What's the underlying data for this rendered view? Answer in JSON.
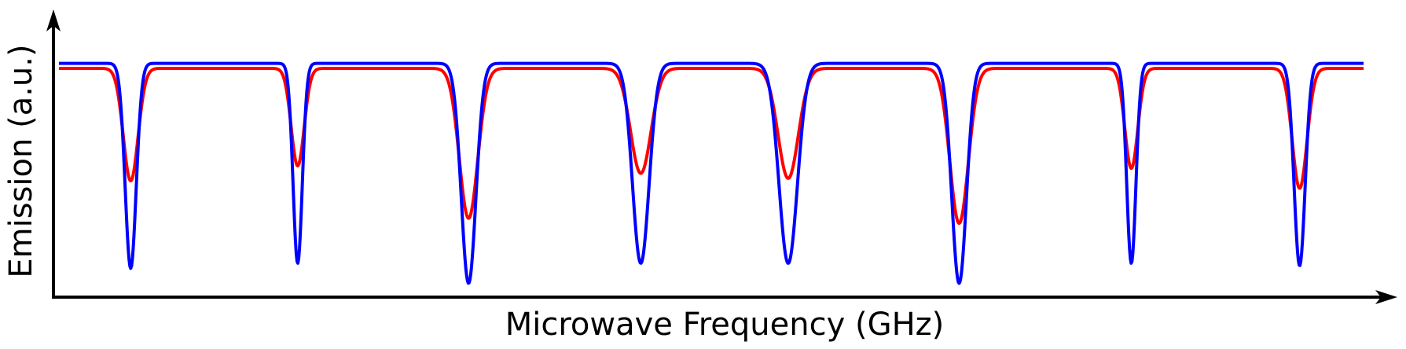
{
  "chart_data": {
    "type": "line",
    "title": "",
    "xlabel": "Microwave Frequency (GHz)",
    "ylabel": "Emission (a.u.)",
    "grid": false,
    "legend": "none",
    "xlim": [
      0,
      1
    ],
    "ylim": [
      0,
      1
    ],
    "series": [
      {
        "color": "#ff0000",
        "baseline": 0.89,
        "dips": [
          {
            "x": 0.055,
            "y": 0.44,
            "width": 0.008
          },
          {
            "x": 0.183,
            "y": 0.5,
            "width": 0.007
          },
          {
            "x": 0.314,
            "y": 0.29,
            "width": 0.01
          },
          {
            "x": 0.446,
            "y": 0.47,
            "width": 0.011
          },
          {
            "x": 0.559,
            "y": 0.45,
            "width": 0.011
          },
          {
            "x": 0.69,
            "y": 0.27,
            "width": 0.01
          },
          {
            "x": 0.822,
            "y": 0.49,
            "width": 0.007
          },
          {
            "x": 0.951,
            "y": 0.41,
            "width": 0.008
          }
        ]
      },
      {
        "color": "#0000ff",
        "baseline": 0.91,
        "dips": [
          {
            "x": 0.055,
            "y": 0.09,
            "width": 0.006
          },
          {
            "x": 0.183,
            "y": 0.11,
            "width": 0.005
          },
          {
            "x": 0.314,
            "y": 0.03,
            "width": 0.008
          },
          {
            "x": 0.446,
            "y": 0.11,
            "width": 0.009
          },
          {
            "x": 0.559,
            "y": 0.11,
            "width": 0.01
          },
          {
            "x": 0.69,
            "y": 0.03,
            "width": 0.008
          },
          {
            "x": 0.822,
            "y": 0.11,
            "width": 0.005
          },
          {
            "x": 0.951,
            "y": 0.1,
            "width": 0.006
          }
        ]
      }
    ]
  }
}
